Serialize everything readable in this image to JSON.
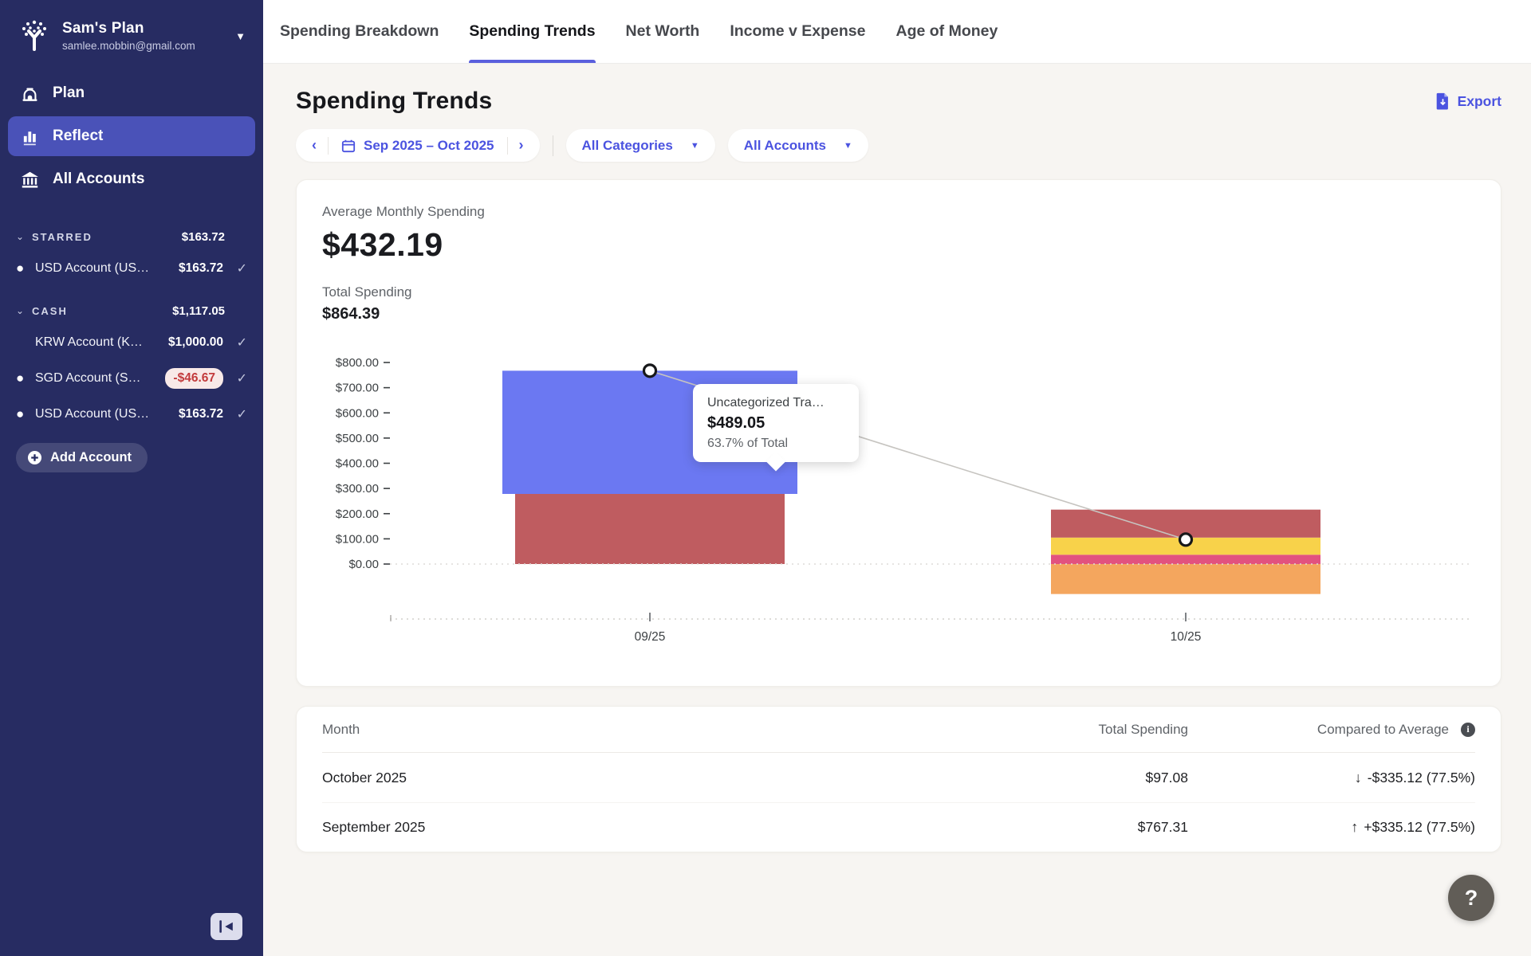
{
  "sidebar": {
    "plan_name": "Sam's Plan",
    "email": "samlee.mobbin@gmail.com",
    "nav": [
      {
        "label": "Plan"
      },
      {
        "label": "Reflect"
      },
      {
        "label": "All Accounts"
      }
    ],
    "sections": [
      {
        "label": "STARRED",
        "total": "$163.72",
        "accounts": [
          {
            "name": "USD Account (US…",
            "amount": "$163.72"
          }
        ]
      },
      {
        "label": "CASH",
        "total": "$1,117.05",
        "accounts": [
          {
            "name": "KRW Account (K…",
            "amount": "$1,000.00"
          },
          {
            "name": "SGD Account (S…",
            "amount": "-$46.67"
          },
          {
            "name": "USD Account (US…",
            "amount": "$163.72"
          }
        ]
      }
    ],
    "add_account_label": "Add Account"
  },
  "tabs": [
    {
      "label": "Spending Breakdown"
    },
    {
      "label": "Spending Trends"
    },
    {
      "label": "Net Worth"
    },
    {
      "label": "Income v Expense"
    },
    {
      "label": "Age of Money"
    }
  ],
  "page": {
    "title": "Spending Trends",
    "export_label": "Export"
  },
  "filters": {
    "date_range": "Sep 2025 – Oct 2025",
    "prev_glyph": "‹",
    "next_glyph": "›",
    "categories": "All Categories",
    "accounts": "All Accounts"
  },
  "metrics": {
    "avg_label": "Average Monthly Spending",
    "avg_value": "$432.19",
    "total_label": "Total Spending",
    "total_value": "$864.39"
  },
  "chart_data": {
    "type": "bar",
    "stacked": true,
    "title": "Monthly spending trend",
    "x": [
      "09/25",
      "10/25"
    ],
    "y_ticks": [
      "$0.00",
      "$100.00",
      "$200.00",
      "$300.00",
      "$400.00",
      "$500.00",
      "$600.00",
      "$700.00",
      "$800.00"
    ],
    "y_tick_values": [
      0,
      100,
      200,
      300,
      400,
      500,
      600,
      700,
      800
    ],
    "ylim": [
      -150,
      800
    ],
    "grid": "zero-line-dotted",
    "months": [
      {
        "label": "09/25",
        "total": 767.31,
        "segments": [
          {
            "name": "category-red",
            "color": "#bf5c60",
            "from": 0,
            "to": 278.26
          },
          {
            "name": "Uncategorized Transactions",
            "color": "#6b78f2",
            "from": 278.26,
            "to": 767.31,
            "hovered": true
          }
        ]
      },
      {
        "label": "10/25",
        "total": 97.08,
        "segments": [
          {
            "name": "category-pink",
            "color": "#e2527f",
            "from": 0,
            "to": 37
          },
          {
            "name": "category-yellow",
            "color": "#f8d24a",
            "from": 37,
            "to": 105
          },
          {
            "name": "category-red",
            "color": "#bf5c60",
            "from": 105,
            "to": 216
          },
          {
            "name": "category-orange",
            "color": "#f4a65e",
            "from": 0,
            "to": -119
          }
        ]
      }
    ],
    "totals_line": {
      "values": [
        767.31,
        97.08
      ],
      "color": "#c6c4c0"
    }
  },
  "tooltip": {
    "title": "Uncategorized Tra…",
    "value": "$489.05",
    "subtitle": "63.7% of Total"
  },
  "table": {
    "columns": [
      "Month",
      "Total Spending",
      "Compared to Average"
    ],
    "rows": [
      {
        "month": "October 2025",
        "total": "$97.08",
        "arrow": "↓",
        "compared": "-$335.12 (77.5%)"
      },
      {
        "month": "September 2025",
        "total": "$767.31",
        "arrow": "↑",
        "compared": "+$335.12 (77.5%)"
      }
    ]
  },
  "help": {
    "label": "?"
  },
  "colors": {
    "sidebar_bg": "#272c62",
    "active_nav": "#4a52b8",
    "accent_purple": "#4b53e0",
    "tab_underline": "#5a5fdd",
    "negative_badge_bg": "#f8e9e8",
    "negative_badge_text": "#c23a3c"
  }
}
